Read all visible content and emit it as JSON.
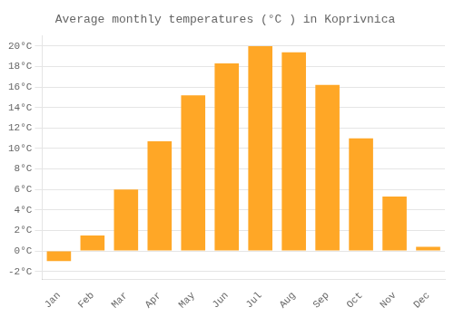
{
  "chart_data": {
    "type": "bar",
    "title": "Average monthly temperatures (°C ) in Koprivnica",
    "categories": [
      "Jan",
      "Feb",
      "Mar",
      "Apr",
      "May",
      "Jun",
      "Jul",
      "Aug",
      "Sep",
      "Oct",
      "Nov",
      "Dec"
    ],
    "values": [
      -1.0,
      1.5,
      6.0,
      10.7,
      15.2,
      18.3,
      20.0,
      19.4,
      16.2,
      11.0,
      5.3,
      0.4
    ],
    "color": "#FFA726",
    "ylim": [
      -2.8,
      21.0
    ],
    "yticks": [
      {
        "value": -2,
        "label": "-2°C"
      },
      {
        "value": 0,
        "label": "0°C"
      },
      {
        "value": 2,
        "label": "2°C"
      },
      {
        "value": 4,
        "label": "4°C"
      },
      {
        "value": 6,
        "label": "6°C"
      },
      {
        "value": 8,
        "label": "8°C"
      },
      {
        "value": 10,
        "label": "10°C"
      },
      {
        "value": 12,
        "label": "12°C"
      },
      {
        "value": 14,
        "label": "14°C"
      },
      {
        "value": 16,
        "label": "16°C"
      },
      {
        "value": 18,
        "label": "18°C"
      },
      {
        "value": 20,
        "label": "20°C"
      }
    ],
    "grid": true
  }
}
